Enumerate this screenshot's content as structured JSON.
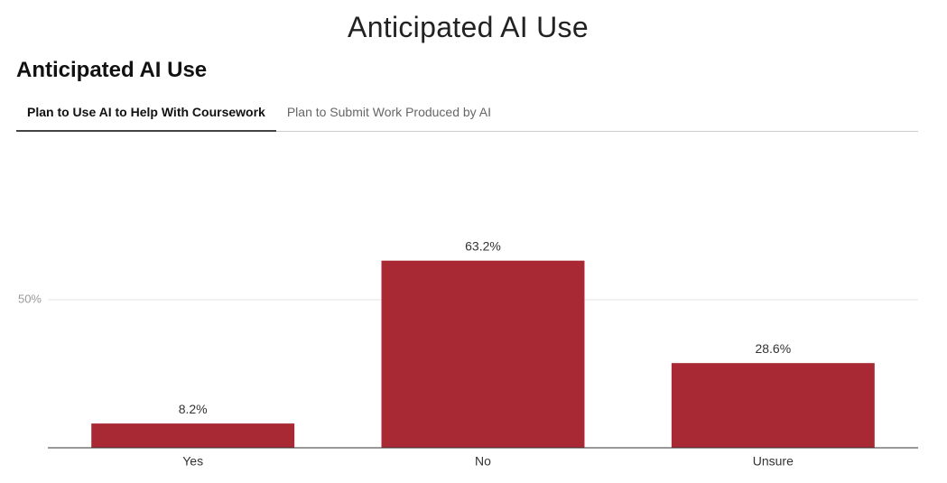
{
  "page_title": "Anticipated AI Use",
  "heading": "Anticipated AI Use",
  "tabs": [
    "Plan to Use AI to Help With Coursework",
    "Plan to Submit Work Produced by AI"
  ],
  "chart_data": {
    "type": "bar",
    "categories": [
      "Yes",
      "No",
      "Unsure"
    ],
    "values": [
      8.2,
      63.2,
      28.6
    ],
    "value_labels": [
      "8.2%",
      "63.2%",
      "28.6%"
    ],
    "color": "#a82934",
    "ylim": [
      0,
      100
    ],
    "yticks": [
      {
        "value": 50,
        "label": "50%"
      }
    ],
    "grid": true
  }
}
